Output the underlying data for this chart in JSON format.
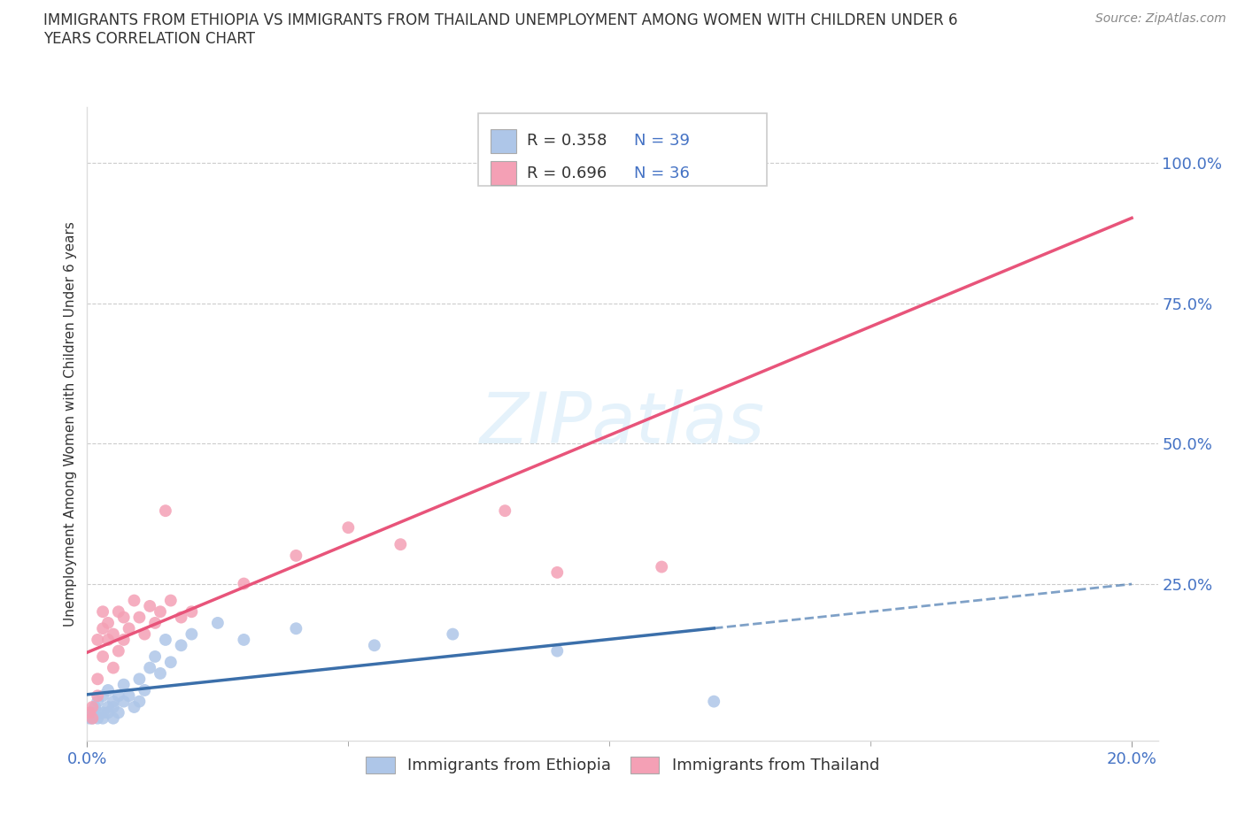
{
  "title": "IMMIGRANTS FROM ETHIOPIA VS IMMIGRANTS FROM THAILAND UNEMPLOYMENT AMONG WOMEN WITH CHILDREN UNDER 6\nYEARS CORRELATION CHART",
  "source": "Source: ZipAtlas.com",
  "ylabel": "Unemployment Among Women with Children Under 6 years",
  "legend_label1": "Immigrants from Ethiopia",
  "legend_label2": "Immigrants from Thailand",
  "R1": 0.358,
  "N1": 39,
  "R2": 0.696,
  "N2": 36,
  "color1": "#aec6e8",
  "color2": "#f4a0b5",
  "line_color1": "#3b6faa",
  "line_color2": "#e8547a",
  "xlim": [
    0.0,
    0.205
  ],
  "ylim": [
    -0.03,
    1.1
  ],
  "ethiopia_x": [
    0.0005,
    0.001,
    0.001,
    0.0015,
    0.002,
    0.002,
    0.002,
    0.003,
    0.003,
    0.003,
    0.004,
    0.004,
    0.004,
    0.005,
    0.005,
    0.005,
    0.006,
    0.006,
    0.007,
    0.007,
    0.008,
    0.009,
    0.01,
    0.01,
    0.011,
    0.012,
    0.013,
    0.014,
    0.015,
    0.016,
    0.018,
    0.02,
    0.025,
    0.03,
    0.04,
    0.055,
    0.07,
    0.09,
    0.12
  ],
  "ethiopia_y": [
    0.01,
    0.02,
    0.01,
    0.03,
    0.02,
    0.04,
    0.01,
    0.05,
    0.02,
    0.01,
    0.03,
    0.06,
    0.02,
    0.04,
    0.01,
    0.03,
    0.05,
    0.02,
    0.04,
    0.07,
    0.05,
    0.03,
    0.08,
    0.04,
    0.06,
    0.1,
    0.12,
    0.09,
    0.15,
    0.11,
    0.14,
    0.16,
    0.18,
    0.15,
    0.17,
    0.14,
    0.16,
    0.13,
    0.04
  ],
  "thailand_x": [
    0.0005,
    0.001,
    0.001,
    0.002,
    0.002,
    0.002,
    0.003,
    0.003,
    0.003,
    0.004,
    0.004,
    0.005,
    0.005,
    0.006,
    0.006,
    0.007,
    0.007,
    0.008,
    0.009,
    0.01,
    0.011,
    0.012,
    0.013,
    0.014,
    0.015,
    0.016,
    0.018,
    0.02,
    0.03,
    0.04,
    0.05,
    0.06,
    0.08,
    0.09,
    0.1,
    0.11
  ],
  "thailand_y": [
    0.02,
    0.03,
    0.01,
    0.05,
    0.15,
    0.08,
    0.12,
    0.17,
    0.2,
    0.15,
    0.18,
    0.1,
    0.16,
    0.2,
    0.13,
    0.19,
    0.15,
    0.17,
    0.22,
    0.19,
    0.16,
    0.21,
    0.18,
    0.2,
    0.38,
    0.22,
    0.19,
    0.2,
    0.25,
    0.3,
    0.35,
    0.32,
    0.38,
    0.27,
    1.0,
    0.28
  ]
}
